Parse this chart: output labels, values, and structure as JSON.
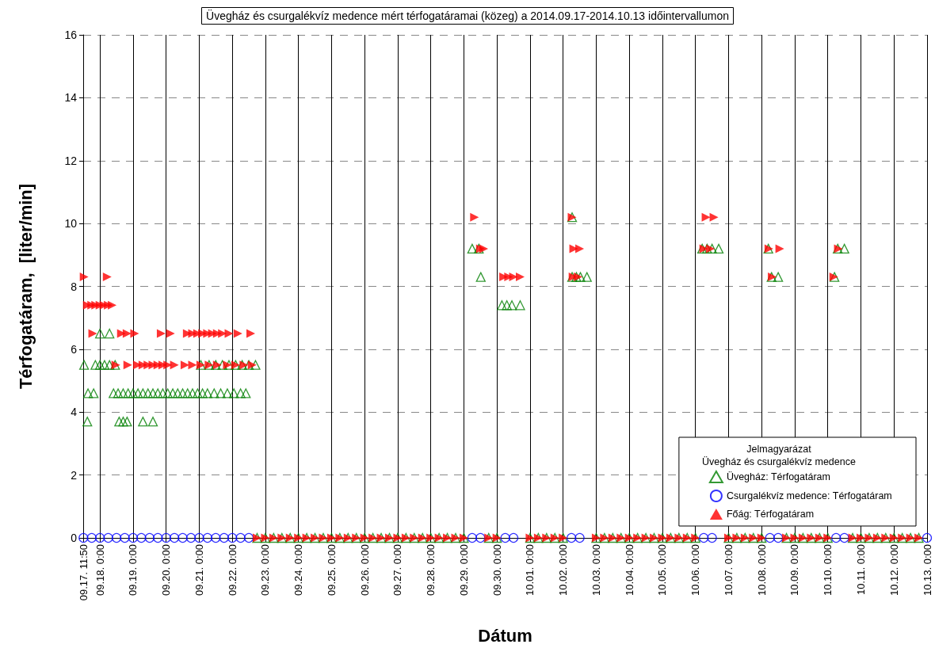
{
  "chart_data": {
    "type": "scatter",
    "title": "Üvegház és csurgalékvíz medence mért térfogatáramai (közeg) a 2014.09.17-2014.10.13 időintervallumon",
    "xlabel": "Dátum",
    "ylabel": "Térfogatáram,  [liter/min]",
    "legend_title": "Jelmagyarázat\nÜvegház és csurgalékvíz medence",
    "legend": "bottom right",
    "grid": true,
    "xlim": [
      "--09-17T11:50",
      "--10-13T00:00"
    ],
    "ylim": [
      0,
      16
    ],
    "yticks": [
      0,
      2,
      4,
      6,
      8,
      10,
      12,
      14,
      16
    ],
    "xticks": [
      {
        "value": "--09-17T11:50",
        "label": "09.17. 11:50"
      },
      {
        "value": "--09-18T00:00",
        "label": "09.18. 0:00"
      },
      {
        "value": "--09-19T00:00",
        "label": "09.19. 0:00"
      },
      {
        "value": "--09-20T00:00",
        "label": "09.20. 0:00"
      },
      {
        "value": "--09-21T00:00",
        "label": "09.21. 0:00"
      },
      {
        "value": "--09-22T00:00",
        "label": "09.22. 0:00"
      },
      {
        "value": "--09-23T00:00",
        "label": "09.23. 0:00"
      },
      {
        "value": "--09-24T00:00",
        "label": "09.24. 0:00"
      },
      {
        "value": "--09-25T00:00",
        "label": "09.25. 0:00"
      },
      {
        "value": "--09-26T00:00",
        "label": "09.26. 0:00"
      },
      {
        "value": "--09-27T00:00",
        "label": "09.27. 0:00"
      },
      {
        "value": "--09-28T00:00",
        "label": "09.28. 0:00"
      },
      {
        "value": "--09-29T00:00",
        "label": "09.29. 0:00"
      },
      {
        "value": "--09-30T00:00",
        "label": "09.30. 0:00"
      },
      {
        "value": "--10-01T00:00",
        "label": "10.01. 0:00"
      },
      {
        "value": "--10-02T00:00",
        "label": "10.02. 0:00"
      },
      {
        "value": "--10-03T00:00",
        "label": "10.03. 0:00"
      },
      {
        "value": "--10-04T00:00",
        "label": "10.04. 0:00"
      },
      {
        "value": "--10-05T00:00",
        "label": "10.05. 0:00"
      },
      {
        "value": "--10-06T00:00",
        "label": "10.06. 0:00"
      },
      {
        "value": "--10-07T00:00",
        "label": "10.07. 0:00"
      },
      {
        "value": "--10-08T00:00",
        "label": "10.08. 0:00"
      },
      {
        "value": "--10-09T00:00",
        "label": "10.09. 0:00"
      },
      {
        "value": "--10-10T00:00",
        "label": "10.10. 0:00"
      },
      {
        "value": "--10-11T00:00",
        "label": "10.11. 0:00"
      },
      {
        "value": "--10-12T00:00",
        "label": "10.12. 0:00"
      },
      {
        "value": "--10-13T00:00",
        "label": "10.13. 0:00"
      }
    ],
    "series": [
      {
        "name": "Üvegház: Térfogatáram",
        "color": "#008000",
        "marker": "triangle",
        "x": [
          "--09-17T12:30",
          "--09-17T14:50",
          "--09-17T15:20",
          "--09-17T19:25",
          "--09-17T20:40",
          "--09-18T00:00",
          "--09-18T00:00",
          "--09-18T03:20",
          "--09-18T06:55",
          "--09-18T06:55",
          "--09-18T09:50",
          "--09-18T11:00",
          "--09-18T13:10",
          "--09-18T13:55",
          "--09-18T16:50",
          "--09-18T16:50",
          "--09-18T19:40",
          "--09-18T20:25",
          "--09-19T00:00",
          "--09-19T03:35",
          "--09-19T07:10",
          "--09-19T07:10",
          "--09-19T10:50",
          "--09-19T14:25",
          "--09-19T14:25",
          "--09-19T18:00",
          "--09-19T21:35",
          "--09-20T01:10",
          "--09-20T04:50",
          "--09-20T08:25",
          "--09-20T12:00",
          "--09-20T15:35",
          "--09-20T19:10",
          "--09-20T22:50",
          "--09-21T01:10",
          "--09-21T02:25",
          "--09-21T06:00",
          "--09-21T07:10",
          "--09-21T10:50",
          "--09-21T12:00",
          "--09-21T15:35",
          "--09-21T16:50",
          "--09-21T20:25",
          "--09-21T21:35",
          "--09-22T01:10",
          "--09-22T02:25",
          "--09-22T06:00",
          "--09-22T07:10",
          "--09-22T09:50",
          "--09-22T12:00",
          "--09-22T16:50",
          "--09-29T06:00",
          "--09-29T10:50",
          "--09-29T12:15",
          "--09-30T03:35",
          "--09-30T07:10",
          "--09-30T10:50",
          "--09-30T16:50",
          "--10-02T06:30",
          "--10-02T06:30",
          "--10-02T09:35",
          "--10-02T12:30",
          "--10-02T17:15",
          "--10-06T04:50",
          "--10-06T08:25",
          "--10-06T12:00",
          "--10-06T16:50",
          "--10-08T04:50",
          "--10-08T07:10",
          "--10-08T12:00",
          "--10-10T04:50",
          "--10-10T07:10",
          "--10-10T12:00",
          "--09-22T18:00",
          "--09-23T00:00",
          "--09-23T06:00",
          "--09-23T12:00",
          "--09-23T18:00",
          "--09-24T00:00",
          "--09-24T06:00",
          "--09-24T12:00",
          "--09-24T18:00",
          "--09-25T00:00",
          "--09-25T06:00",
          "--09-25T12:00",
          "--09-25T18:00",
          "--09-26T00:00",
          "--09-26T06:00",
          "--09-26T12:00",
          "--09-26T18:00",
          "--09-27T00:00",
          "--09-27T06:00",
          "--09-27T12:00",
          "--09-27T18:00",
          "--09-28T00:00",
          "--09-28T06:00",
          "--09-28T12:00",
          "--09-28T18:00",
          "--09-29T00:00",
          "--09-29T18:00",
          "--09-30T00:00",
          "--10-01T00:00",
          "--10-01T06:00",
          "--10-01T12:00",
          "--10-01T18:00",
          "--10-02T00:00",
          "--10-03T00:00",
          "--10-03T06:00",
          "--10-03T12:00",
          "--10-03T18:00",
          "--10-04T00:00",
          "--10-04T06:00",
          "--10-04T12:00",
          "--10-04T18:00",
          "--10-05T00:00",
          "--10-05T06:00",
          "--10-05T12:00",
          "--10-05T18:00",
          "--10-06T00:00",
          "--10-07T00:00",
          "--10-07T06:00",
          "--10-07T12:00",
          "--10-07T18:00",
          "--10-08T00:00",
          "--10-08T18:00",
          "--10-09T00:00",
          "--10-09T06:00",
          "--10-09T12:00",
          "--10-09T18:00",
          "--10-10T00:00",
          "--10-10T18:00",
          "--10-11T00:00",
          "--10-11T06:00",
          "--10-11T12:00",
          "--10-11T18:00",
          "--10-12T00:00",
          "--10-12T06:00",
          "--10-12T12:00",
          "--10-12T18:00"
        ],
        "values": [
          5.5,
          3.7,
          4.6,
          4.6,
          5.5,
          5.5,
          6.5,
          5.5,
          5.5,
          6.5,
          4.6,
          5.5,
          4.6,
          3.7,
          3.7,
          4.6,
          3.7,
          4.6,
          4.6,
          4.6,
          3.7,
          4.6,
          4.6,
          3.7,
          4.6,
          4.6,
          4.6,
          4.6,
          4.6,
          4.6,
          4.6,
          4.6,
          4.6,
          4.6,
          5.5,
          4.6,
          4.6,
          5.5,
          4.6,
          5.5,
          4.6,
          5.5,
          4.6,
          5.5,
          4.6,
          5.5,
          4.6,
          5.5,
          4.6,
          5.5,
          5.5,
          9.2,
          9.2,
          8.3,
          7.4,
          7.4,
          7.4,
          7.4,
          10.2,
          8.3,
          8.3,
          8.3,
          8.3,
          9.2,
          9.2,
          9.2,
          9.2,
          9.2,
          8.3,
          8.3,
          8.3,
          9.2,
          9.2,
          0,
          0,
          0,
          0,
          0,
          0,
          0,
          0,
          0,
          0,
          0,
          0,
          0,
          0,
          0,
          0,
          0,
          0,
          0,
          0,
          0,
          0,
          0,
          0,
          0,
          0,
          0,
          0,
          0,
          0,
          0,
          0,
          0,
          0,
          0,
          0,
          0,
          0,
          0,
          0,
          0,
          0,
          0,
          0,
          0,
          0,
          0,
          0,
          0,
          0,
          0,
          0,
          0,
          0,
          0,
          0,
          0,
          0,
          0,
          0,
          0,
          0,
          0,
          0,
          0,
          0
        ]
      },
      {
        "name": "Csurgalékvíz medence: Térfogatáram",
        "color": "#0000ff",
        "marker": "circle",
        "x": [
          "--09-17T12:00",
          "--09-17T18:00",
          "--09-18T00:00",
          "--09-18T06:00",
          "--09-18T12:00",
          "--09-18T18:00",
          "--09-19T00:00",
          "--09-19T06:00",
          "--09-19T12:00",
          "--09-19T18:00",
          "--09-20T00:00",
          "--09-20T06:00",
          "--09-20T12:00",
          "--09-20T18:00",
          "--09-21T00:00",
          "--09-21T06:00",
          "--09-21T12:00",
          "--09-21T18:00",
          "--09-22T00:00",
          "--09-22T06:00",
          "--09-22T12:00",
          "--09-29T06:00",
          "--09-29T12:00",
          "--09-30T06:00",
          "--09-30T12:00",
          "--10-02T06:00",
          "--10-02T12:00",
          "--10-06T06:00",
          "--10-06T12:00",
          "--10-08T06:00",
          "--10-08T12:00",
          "--10-10T06:00",
          "--10-10T12:00",
          "--10-13T00:00"
        ],
        "values": [
          0,
          0,
          0,
          0,
          0,
          0,
          0,
          0,
          0,
          0,
          0,
          0,
          0,
          0,
          0,
          0,
          0,
          0,
          0,
          0,
          0,
          0,
          0,
          0,
          0,
          0,
          0,
          0,
          0,
          0,
          0,
          0,
          0,
          0
        ]
      },
      {
        "name": "Főág: Térfogatáram",
        "color": "#ff0000",
        "marker": "triangle",
        "x": [
          "--09-17T12:30",
          "--09-18T05:15",
          "--09-17T14:50",
          "--09-17T18:00",
          "--09-17T20:55",
          "--09-18T00:00",
          "--09-18T02:50",
          "--09-18T06:00",
          "--09-18T08:50",
          "--09-17T18:45",
          "--09-18T15:35",
          "--09-18T19:40",
          "--09-19T01:10",
          "--09-19T20:25",
          "--09-20T03:10",
          "--09-20T15:20",
          "--09-20T19:10",
          "--09-20T22:50",
          "--09-21T02:25",
          "--09-21T06:00",
          "--09-21T09:35",
          "--09-21T13:10",
          "--09-21T16:50",
          "--09-21T21:35",
          "--09-22T04:05",
          "--09-22T13:25",
          "--09-18T11:30",
          "--09-18T20:10",
          "--09-19T03:10",
          "--09-19T07:10",
          "--09-19T10:50",
          "--09-19T14:25",
          "--09-19T18:00",
          "--09-19T21:35",
          "--09-20T01:10",
          "--09-20T06:00",
          "--09-20T13:40",
          "--09-20T19:10",
          "--09-21T01:10",
          "--09-21T07:10",
          "--09-21T13:10",
          "--09-21T20:25",
          "--09-22T02:25",
          "--09-22T08:25",
          "--09-22T14:25",
          "--09-29T07:40",
          "--10-02T06:30",
          "--10-06T07:40",
          "--10-06T13:25",
          "--09-29T12:00",
          "--09-29T14:25",
          "--10-02T07:40",
          "--10-02T12:00",
          "--10-06T06:00",
          "--10-06T10:50",
          "--10-08T05:15",
          "--10-08T13:10",
          "--10-10T07:40",
          "--09-30T04:50",
          "--09-30T08:25",
          "--09-30T12:00",
          "--09-30T16:50",
          "--10-02T07:10",
          "--10-02T10:50",
          "--10-08T07:40",
          "--10-10T04:20",
          "--09-22T18:00",
          "--09-23T00:00",
          "--09-23T06:00",
          "--09-23T12:00",
          "--09-23T18:00",
          "--09-24T00:00",
          "--09-24T06:00",
          "--09-24T12:00",
          "--09-24T18:00",
          "--09-25T00:00",
          "--09-25T06:00",
          "--09-25T12:00",
          "--09-25T18:00",
          "--09-26T00:00",
          "--09-26T06:00",
          "--09-26T12:00",
          "--09-26T18:00",
          "--09-27T00:00",
          "--09-27T06:00",
          "--09-27T12:00",
          "--09-27T18:00",
          "--09-28T00:00",
          "--09-28T06:00",
          "--09-28T12:00",
          "--09-28T18:00",
          "--09-29T00:00",
          "--09-29T18:00",
          "--09-30T00:00",
          "--10-01T00:00",
          "--10-01T06:00",
          "--10-01T12:00",
          "--10-01T18:00",
          "--10-02T00:00",
          "--10-03T00:00",
          "--10-03T06:00",
          "--10-03T12:00",
          "--10-03T18:00",
          "--10-04T00:00",
          "--10-04T06:00",
          "--10-04T12:00",
          "--10-04T18:00",
          "--10-05T00:00",
          "--10-05T06:00",
          "--10-05T12:00",
          "--10-05T18:00",
          "--10-06T00:00",
          "--10-07T00:00",
          "--10-07T06:00",
          "--10-07T12:00",
          "--10-07T18:00",
          "--10-08T00:00",
          "--10-08T18:00",
          "--10-09T00:00",
          "--10-09T06:00",
          "--10-09T12:00",
          "--10-09T18:00",
          "--10-10T00:00",
          "--10-10T18:00",
          "--10-11T00:00",
          "--10-11T06:00",
          "--10-11T12:00",
          "--10-11T18:00",
          "--10-12T00:00",
          "--10-12T06:00",
          "--10-12T12:00",
          "--10-12T18:00"
        ],
        "values": [
          8.3,
          8.3,
          7.4,
          7.4,
          7.4,
          7.4,
          7.4,
          7.4,
          7.4,
          6.5,
          6.5,
          6.5,
          6.5,
          6.5,
          6.5,
          6.5,
          6.5,
          6.5,
          6.5,
          6.5,
          6.5,
          6.5,
          6.5,
          6.5,
          6.5,
          6.5,
          5.5,
          5.5,
          5.5,
          5.5,
          5.5,
          5.5,
          5.5,
          5.5,
          5.5,
          5.5,
          5.5,
          5.5,
          5.5,
          5.5,
          5.5,
          5.5,
          5.5,
          5.5,
          5.5,
          10.2,
          10.2,
          10.2,
          10.2,
          9.2,
          9.2,
          9.2,
          9.2,
          9.2,
          9.2,
          9.2,
          9.2,
          9.2,
          8.3,
          8.3,
          8.3,
          8.3,
          8.3,
          8.3,
          8.3,
          8.3,
          0,
          0,
          0,
          0,
          0,
          0,
          0,
          0,
          0,
          0,
          0,
          0,
          0,
          0,
          0,
          0,
          0,
          0,
          0,
          0,
          0,
          0,
          0,
          0,
          0,
          0,
          0,
          0,
          0,
          0,
          0,
          0,
          0,
          0,
          0,
          0,
          0,
          0,
          0,
          0,
          0,
          0,
          0,
          0,
          0,
          0,
          0,
          0,
          0,
          0,
          0,
          0,
          0,
          0,
          0,
          0,
          0,
          0,
          0,
          0,
          0,
          0,
          0,
          0,
          0,
          0
        ]
      }
    ]
  }
}
